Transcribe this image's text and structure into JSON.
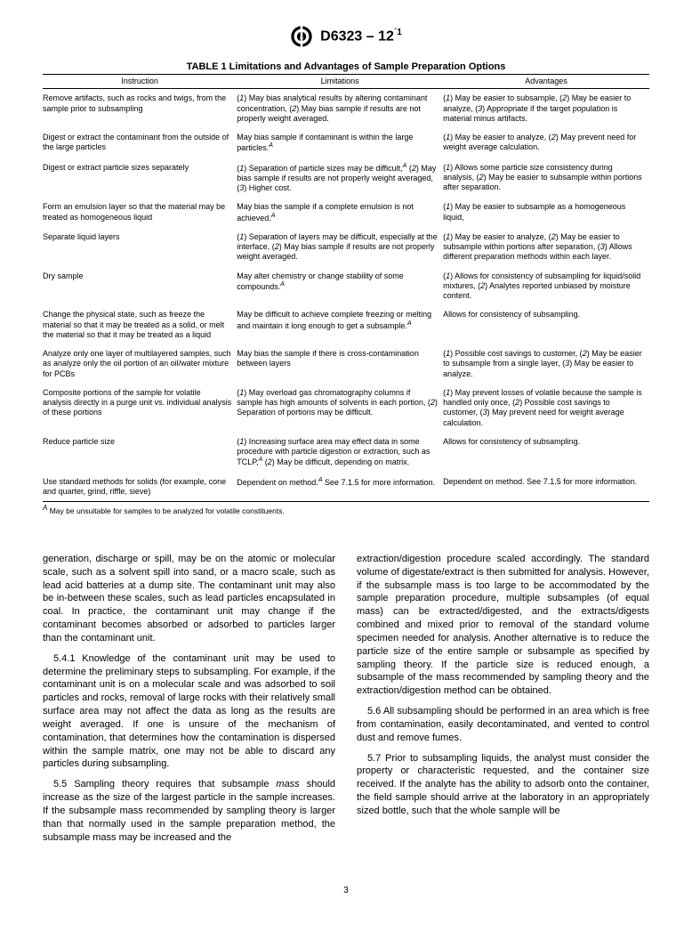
{
  "header": {
    "designation": "D6323 – 12",
    "epsilon": "´1"
  },
  "table": {
    "title": "TABLE 1 Limitations and Advantages of Sample Preparation Options",
    "columns": [
      "Instruction",
      "Limitations",
      "Advantages"
    ],
    "rows": [
      {
        "instruction": "Remove artifacts, such as rocks and twigs, from the sample prior to subsampling",
        "limitations": "(1) May bias analytical results by altering contaminant concentration, (2) May bias sample if results are not properly weight averaged.",
        "advantages": "(1) May be easier to subsample, (2) May be easier to analyze, (3) Appropriate if the target population is material minus artifacts."
      },
      {
        "instruction": "Digest or extract the contaminant from the outside of the large particles",
        "limitations_html": "May bias sample if contaminant is within the large particles.<span class='supA'>A</span>",
        "advantages": "(1) May be easier to analyze, (2) May prevent need for weight average calculation."
      },
      {
        "instruction": "Digest or extract particle sizes separately",
        "limitations_html": "(<span class='italn'>1</span>) Separation of particle sizes may be difficult,<span class='supA'>A</span> (<span class='italn'>2</span>) May bias sample if results are not properly weight averaged, (<span class='italn'>3</span>) Higher cost.",
        "advantages": "(1) Allows some particle size consistency during analysis, (2) May be easier to subsample within portions after separation."
      },
      {
        "instruction": "Form an emulsion layer so that the material may be treated as homogeneous liquid",
        "limitations_html": "May bias the sample if a complete emulsion is not achieved.<span class='supA'>A</span>",
        "advantages": "(1) May be easier to subsample as a homogeneous liquid,"
      },
      {
        "instruction": "Separate liquid layers",
        "limitations": "(1) Separation of layers may be difficult, especially at the interface, (2) May bias sample if results are not properly weight averaged.",
        "advantages": "(1) May be easier to analyze, (2) May be easier to subsample within portions after separation, (3) Allows different preparation methods within each layer."
      },
      {
        "instruction": "Dry sample",
        "limitations_html": "May alter chemistry or change stability of some compounds.<span class='supA'>A</span>",
        "advantages": "(1) Allows for consistency of subsampling for liquid/solid mixtures, (2) Analytes reported unbiased by moisture content."
      },
      {
        "instruction": "Change the physical state, such as freeze the material so that it may be treated as a solid, or melt the material so that it may be treated as a liquid",
        "limitations_html": "May be difficult to achieve complete freezing or melting and maintain it long enough to get a subsample.<span class='supA'>A</span>",
        "advantages": "Allows for consistency of subsampling."
      },
      {
        "instruction": "Analyze only one layer of multilayered samples, such as analyze only the oil portion of an oil/water mixture for PCBs",
        "limitations": "May bias the sample if there is cross-contamination between layers",
        "advantages": "(1) Possible cost savings to customer, (2) May be easier to subsample from a single layer, (3) May be easier to analyze."
      },
      {
        "instruction": "Composite portions of the sample for volatile analysis directly in a purge unit vs. individual analysis of these portions",
        "limitations": "(1) May overload gas chromatography columns if sample has high amounts of solvents in each portion, (2) Separation of portions may be difficult.",
        "advantages": "(1) May prevent losses of volatile because the sample is handled only once, (2) Possible cost savings to customer, (3) May prevent need for weight average calculation."
      },
      {
        "instruction": "Reduce particle size",
        "limitations_html": "(<span class='italn'>1</span>) Increasing surface area may effect data in some procedure with particle digestion or extraction, such as TCLP,<span class='supA'>A</span> (<span class='italn'>2</span>) May be difficult, depending on matrix.",
        "advantages": "Allows for consistency of subsampling."
      },
      {
        "instruction": "Use standard methods for solids (for example, cone and quarter, grind, riffle, sieve)",
        "limitations_html": "Dependent on method.<span class='supA'>A</span> See 7.1.5 for more information.",
        "advantages": "Dependent on method. See 7.1.5 for more information."
      }
    ],
    "footnote": "May be unsuitable for samples to be analyzed for volatile constituents."
  },
  "body": {
    "left": [
      "generation, discharge or spill, may be on the atomic or molecular scale, such as a solvent spill into sand, or a macro scale, such as lead acid batteries at a dump site. The contaminant unit may also be in-between these scales, such as lead particles encapsulated in coal. In practice, the contaminant unit may change if the contaminant becomes absorbed or adsorbed to particles larger than the contaminant unit.",
      "5.4.1 Knowledge of the contaminant unit may be used to determine the preliminary steps to subsampling. For example, if the contaminant unit is on a molecular scale and was adsorbed to soil particles and rocks, removal of large rocks with their relatively small surface area may not affect the data as long as the results are weight averaged. If one is unsure of the mechanism of contamination, that determines how the contamination is dispersed within the sample matrix, one may not be able to discard any particles during subsampling.",
      "5.5 Sampling theory requires that subsample <span class='italn'>mass</span> should increase as the size of the largest particle in the sample increases. If the subsample mass recommended by sampling theory is larger than that normally used in the sample preparation method, the subsample mass may be increased and the"
    ],
    "right": [
      "extraction/digestion procedure scaled accordingly. The standard volume of digestate/extract is then submitted for analysis. However, if the subsample mass is too large to be accommodated by the sample preparation procedure, multiple subsamples (of equal mass) can be extracted/digested, and the extracts/digests combined and mixed prior to removal of the standard volume specimen needed for analysis. Another alternative is to reduce the particle size of the entire sample or subsample as specified by sampling theory. If the particle size is reduced enough, a subsample of the mass recommended by sampling theory and the extraction/digestion method can be obtained.",
      "5.6 All subsampling should be performed in an area which is free from contamination, easily decontaminated, and vented to control dust and remove fumes.",
      "5.7 Prior to subsampling liquids, the analyst must consider the property or characteristic requested, and the container size received. If the analyte has the ability to adsorb onto the container, the field sample should arrive at the laboratory in an appropriately sized bottle, such that the whole sample will be"
    ]
  },
  "page_number": "3"
}
